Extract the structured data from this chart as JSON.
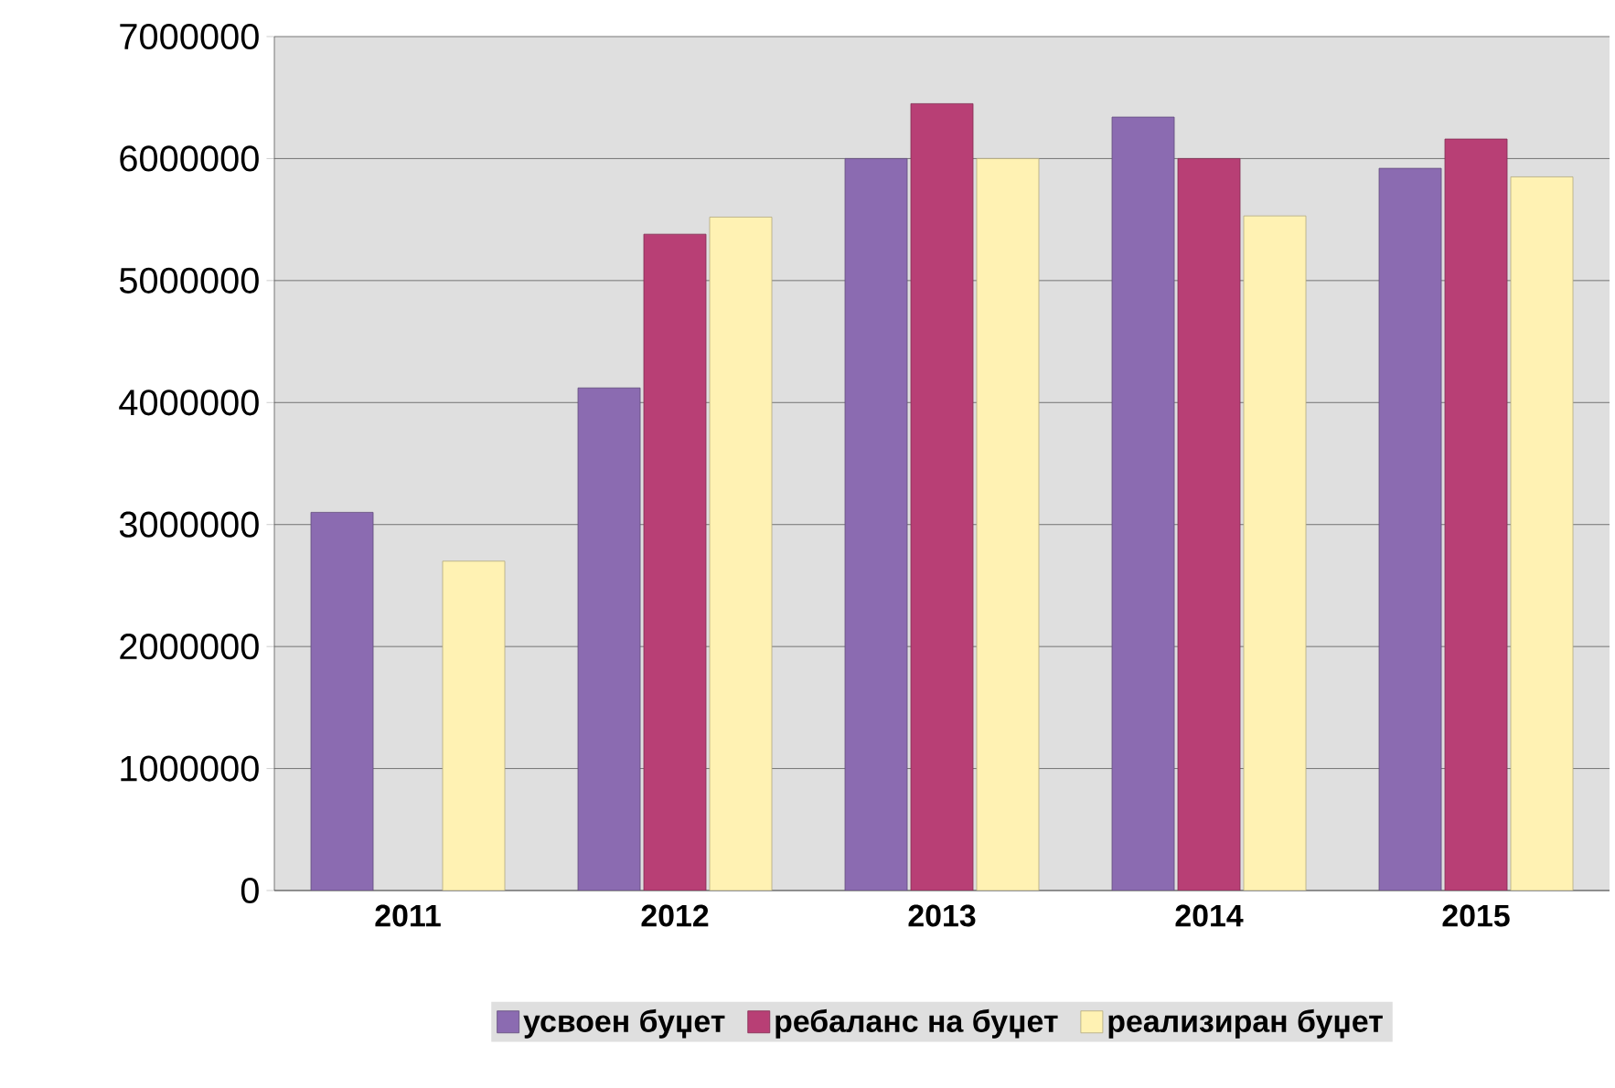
{
  "chart_data": {
    "type": "bar",
    "categories": [
      "2011",
      "2012",
      "2013",
      "2014",
      "2015"
    ],
    "series": [
      {
        "name": "усвоен буџет",
        "color": "#8b6bb1",
        "values": [
          3100000,
          4120000,
          6000000,
          6340000,
          5920000
        ]
      },
      {
        "name": "ребаланс на буџет",
        "color": "#b83f75",
        "values": [
          null,
          5380000,
          6450000,
          6000000,
          6160000
        ]
      },
      {
        "name": "реализиран буџет",
        "color": "#fff2b3",
        "values": [
          2700000,
          5520000,
          6000000,
          5530000,
          5850000
        ]
      }
    ],
    "ylim": [
      0,
      7000000
    ],
    "yticks": [
      0,
      1000000,
      2000000,
      3000000,
      4000000,
      5000000,
      6000000,
      7000000
    ],
    "grid": "y",
    "legend": "bottom"
  }
}
